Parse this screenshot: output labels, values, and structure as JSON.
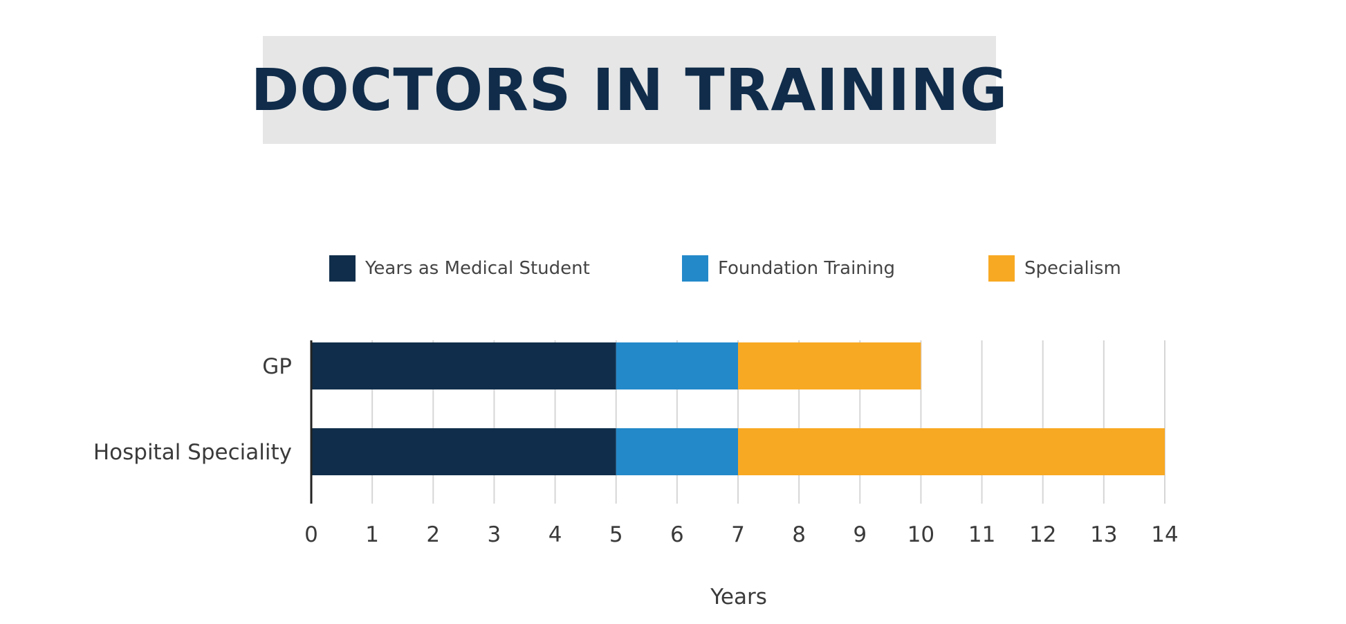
{
  "title": "DOCTORS IN TRAINING",
  "legend": [
    {
      "label": "Years as Medical Student",
      "color": "#102e4b"
    },
    {
      "label": "Foundation Training",
      "color": "#2389c9"
    },
    {
      "label": "Specialism",
      "color": "#f8a923"
    }
  ],
  "chart_data": {
    "type": "bar",
    "orientation": "horizontal",
    "stacked": true,
    "title": "DOCTORS IN TRAINING",
    "xlabel": "Years",
    "ylabel": "",
    "categories": [
      "GP",
      "Hospital Speciality"
    ],
    "series": [
      {
        "name": "Years as Medical Student",
        "color": "#102e4b",
        "values": [
          5,
          5
        ]
      },
      {
        "name": "Foundation Training",
        "color": "#2389c9",
        "values": [
          2,
          2
        ]
      },
      {
        "name": "Specialism",
        "color": "#f8a923",
        "values": [
          3,
          7
        ]
      }
    ],
    "xlim": [
      0,
      14
    ],
    "xticks": [
      "0",
      "1",
      "2",
      "3",
      "4",
      "5",
      "6",
      "7",
      "8",
      "9",
      "10",
      "11",
      "12",
      "13",
      "14"
    ],
    "grid": "vertical",
    "legend_position": "top"
  }
}
